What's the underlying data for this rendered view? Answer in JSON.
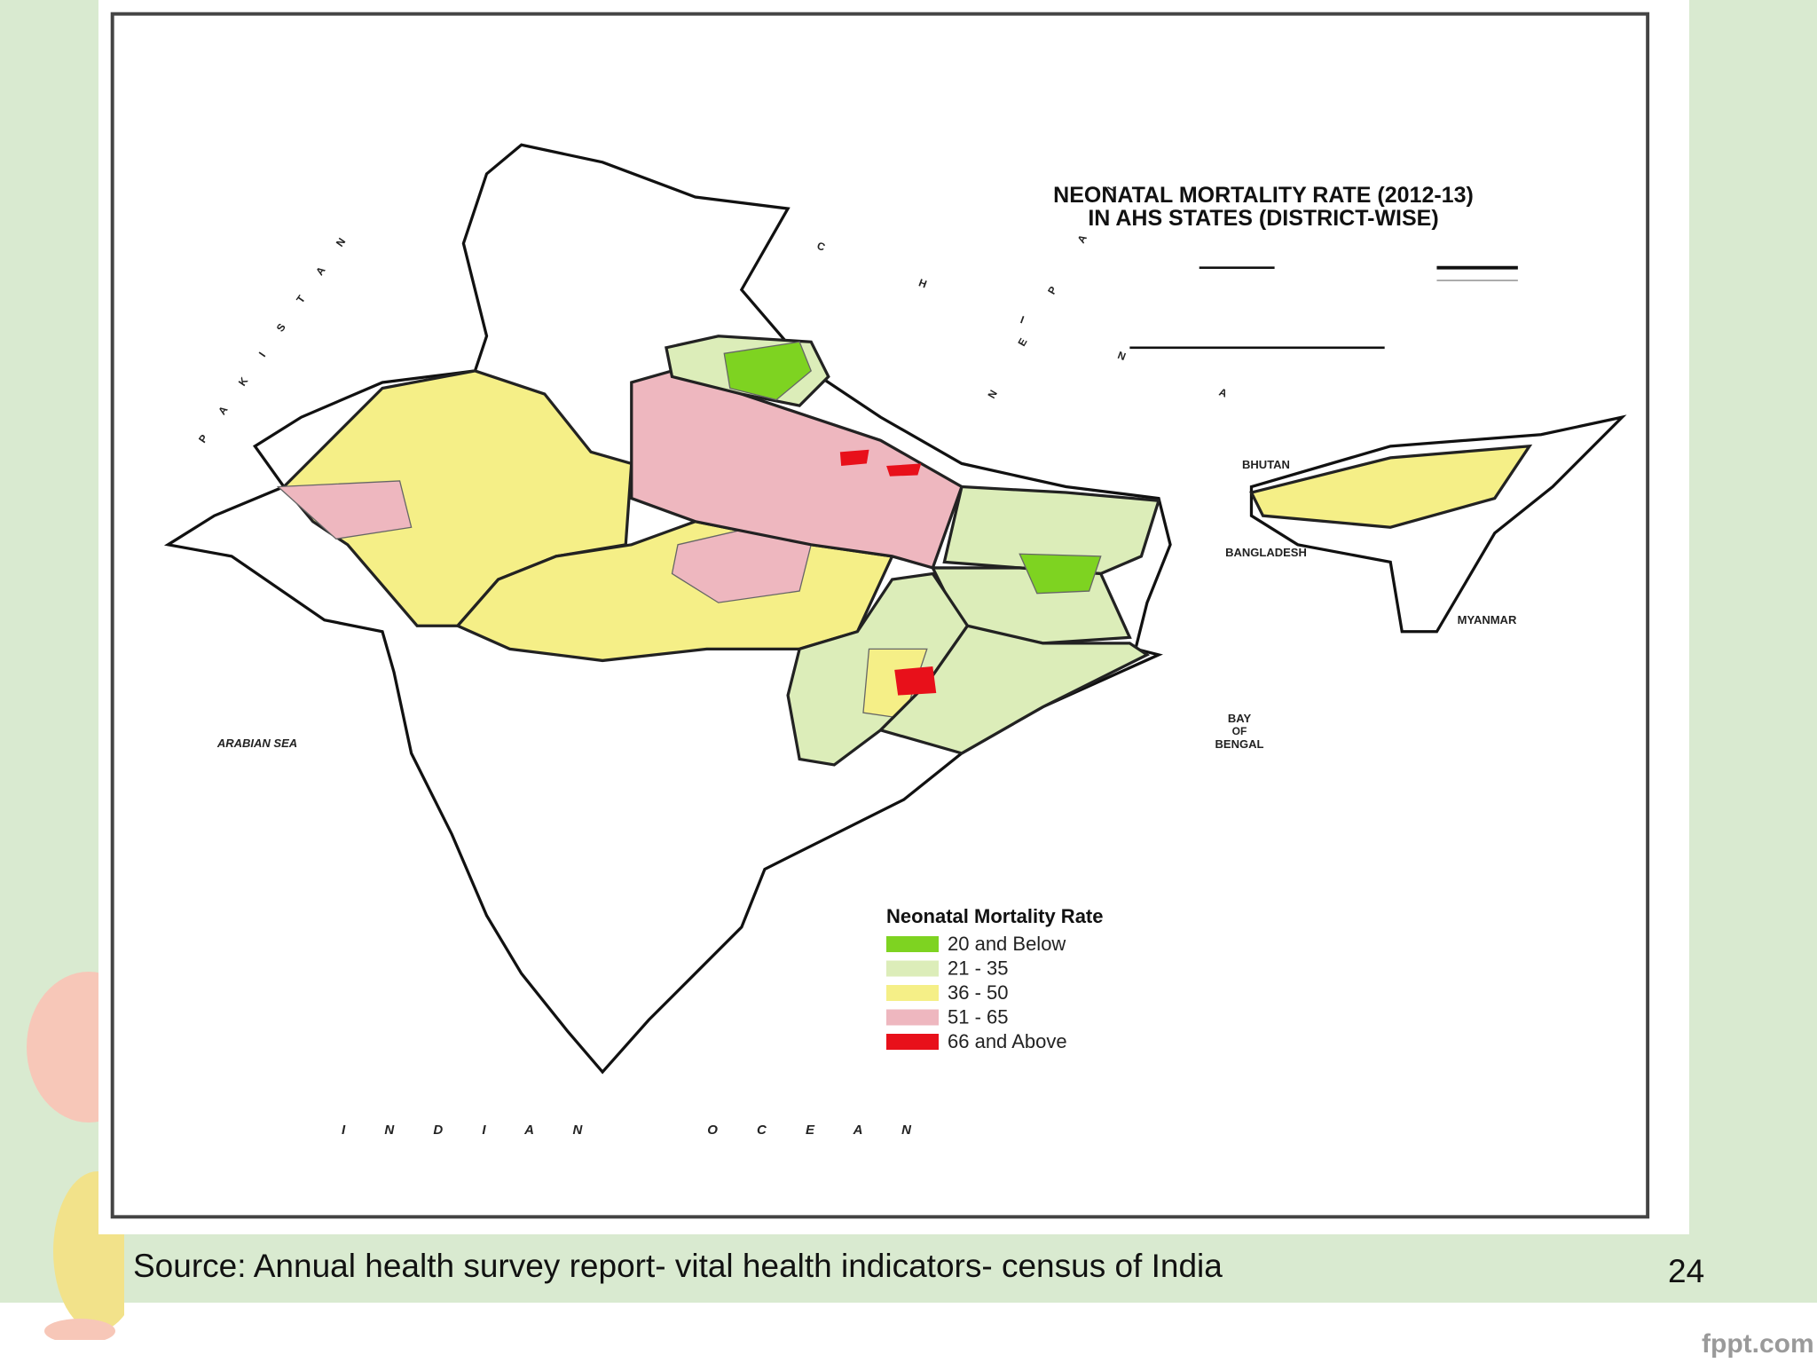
{
  "slide": {
    "map": {
      "title_lines": [
        "NEONATAL MORTALITY RATE (2012-13)",
        "IN AHS STATES (DISTRICT-WISE)"
      ],
      "place_labels": {
        "bhutan": "BHUTAN",
        "bangladesh": "BANGLADESH",
        "myanmar": "MYANMAR",
        "bay_of_bengal": [
          "BAY",
          "OF",
          "BENGAL"
        ],
        "arabian_sea": "ARABIAN SEA",
        "indian_ocean": "I N D I A N     O C E A N",
        "pakistan": "P A K I S T A N",
        "china": "C H I N A",
        "nepal": "N E P A L"
      },
      "legend": {
        "title": "Neonatal Mortality Rate",
        "items": [
          {
            "label": "20 and Below",
            "color": "#7ed321"
          },
          {
            "label": "21 - 35",
            "color": "#dcedb9"
          },
          {
            "label": "36 - 50",
            "color": "#f5ef87"
          },
          {
            "label": "51 - 65",
            "color": "#eeb7bf"
          },
          {
            "label": "66 and Above",
            "color": "#e8101a"
          }
        ]
      }
    },
    "source": "Source: Annual health survey report- vital health indicators- census of India",
    "page_number": "24",
    "brand": "fppt.com"
  }
}
